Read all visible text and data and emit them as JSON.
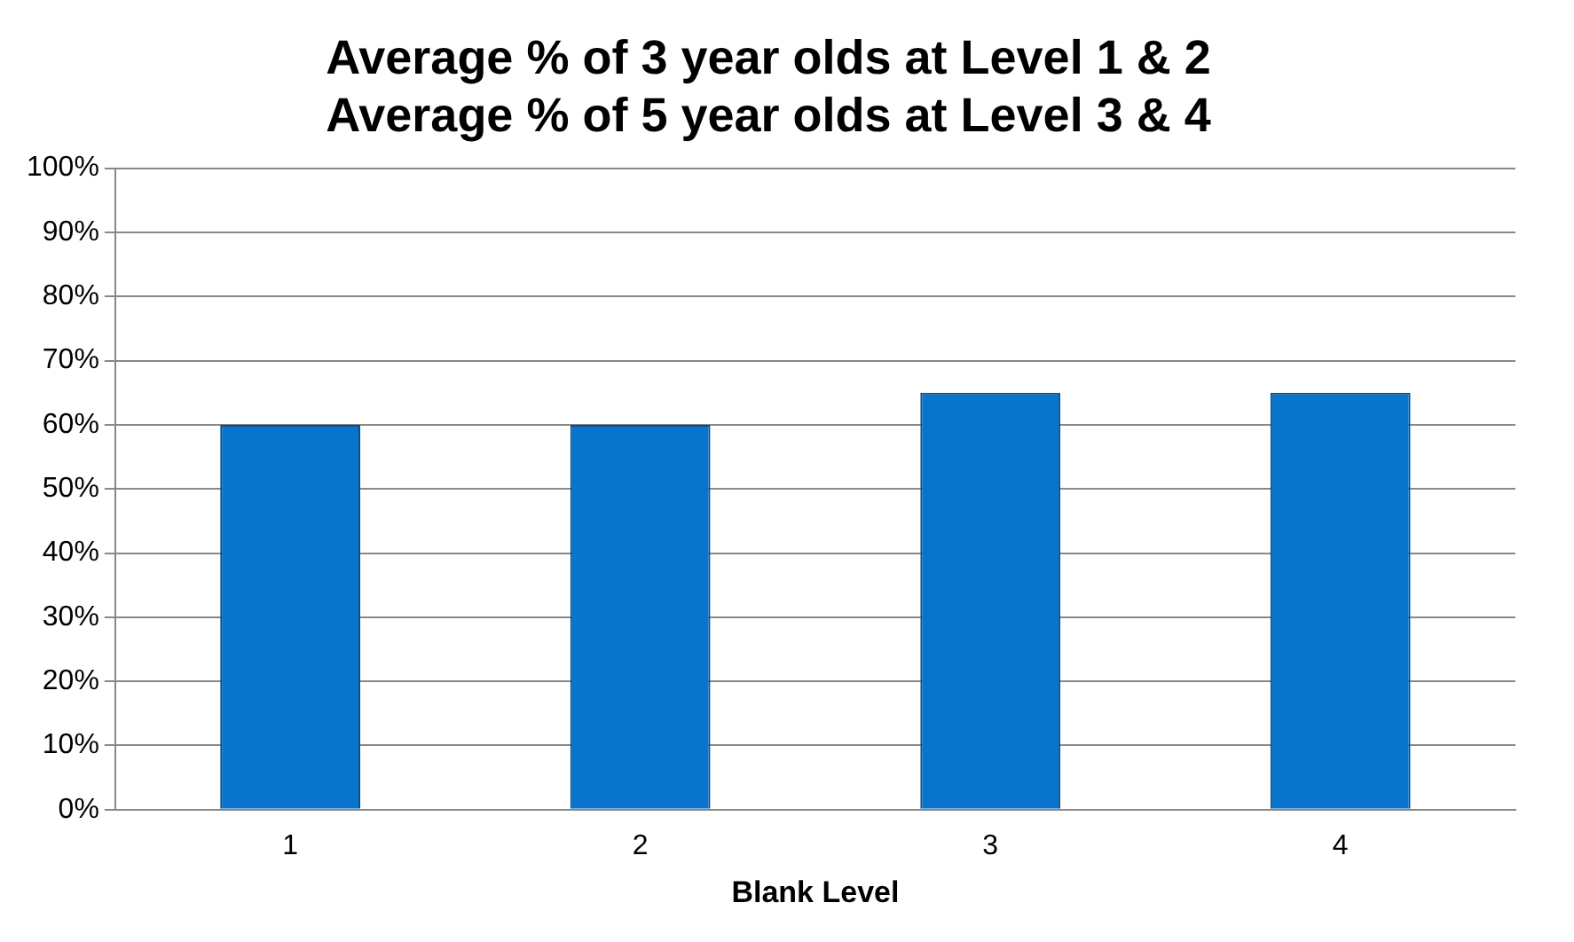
{
  "chart_data": {
    "type": "bar",
    "title": [
      "Average % of 3 year olds at Level 1 & 2",
      "Average % of 5 year olds at Level 3 & 4"
    ],
    "xlabel": "Blank Level",
    "categories": [
      "1",
      "2",
      "3",
      "4"
    ],
    "values": [
      60,
      60,
      65,
      65
    ],
    "color": "#0874cc",
    "ylim": [
      0,
      100
    ],
    "yticks": [
      {
        "value": 0,
        "label": "0%"
      },
      {
        "value": 10,
        "label": "10%"
      },
      {
        "value": 20,
        "label": "20%"
      },
      {
        "value": 30,
        "label": "30%"
      },
      {
        "value": 40,
        "label": "40%"
      },
      {
        "value": 50,
        "label": "50%"
      },
      {
        "value": 60,
        "label": "60%"
      },
      {
        "value": 70,
        "label": "70%"
      },
      {
        "value": 80,
        "label": "80%"
      },
      {
        "value": 90,
        "label": "90%"
      },
      {
        "value": 100,
        "label": "100%"
      }
    ],
    "grid": "y",
    "legend": false
  }
}
